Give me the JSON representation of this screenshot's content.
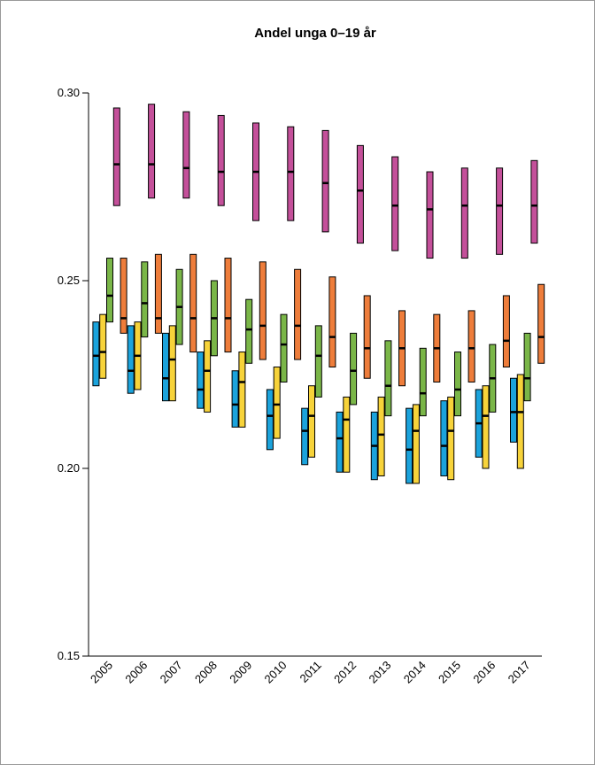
{
  "chart_data": {
    "type": "range",
    "title": "Andel unga 0–19 år",
    "categories": [
      "2005",
      "2006",
      "2007",
      "2008",
      "2009",
      "2010",
      "2011",
      "2012",
      "2013",
      "2014",
      "2015",
      "2016",
      "2017"
    ],
    "ylim": [
      0.15,
      0.3
    ],
    "yticks": [
      0.15,
      {
        "value": 0.2,
        "label": "0.20"
      },
      0.25,
      {
        "value": 0.3,
        "label": "0.30"
      }
    ],
    "series": [
      {
        "color": "#1ba3dc",
        "low": [
          0.222,
          0.22,
          0.218,
          0.216,
          0.211,
          0.205,
          0.201,
          0.199,
          0.197,
          0.196,
          0.198,
          0.203,
          0.207
        ],
        "median": [
          0.23,
          0.226,
          0.224,
          0.221,
          0.217,
          0.214,
          0.21,
          0.208,
          0.206,
          0.205,
          0.206,
          0.212,
          0.215
        ],
        "high": [
          0.239,
          0.238,
          0.236,
          0.231,
          0.226,
          0.221,
          0.216,
          0.215,
          0.215,
          0.216,
          0.218,
          0.221,
          0.224
        ]
      },
      {
        "color": "#f7d33a",
        "low": [
          0.224,
          0.221,
          0.218,
          0.215,
          0.211,
          0.208,
          0.203,
          0.199,
          0.198,
          0.196,
          0.197,
          0.2,
          0.2
        ],
        "median": [
          0.231,
          0.23,
          0.229,
          0.226,
          0.223,
          0.217,
          0.214,
          0.213,
          0.209,
          0.21,
          0.21,
          0.214,
          0.215
        ],
        "high": [
          0.241,
          0.239,
          0.238,
          0.234,
          0.231,
          0.227,
          0.222,
          0.219,
          0.219,
          0.217,
          0.219,
          0.222,
          0.225
        ]
      },
      {
        "color": "#7ab648",
        "low": [
          0.239,
          0.235,
          0.233,
          0.23,
          0.228,
          0.223,
          0.219,
          0.217,
          0.214,
          0.214,
          0.214,
          0.215,
          0.218
        ],
        "median": [
          0.246,
          0.244,
          0.243,
          0.24,
          0.237,
          0.233,
          0.23,
          0.226,
          0.222,
          0.22,
          0.221,
          0.224,
          0.224
        ],
        "high": [
          0.256,
          0.255,
          0.253,
          0.25,
          0.245,
          0.241,
          0.238,
          0.236,
          0.234,
          0.232,
          0.231,
          0.233,
          0.236
        ]
      },
      {
        "color": "#c4509a",
        "low": [
          0.27,
          0.272,
          0.272,
          0.27,
          0.266,
          0.266,
          0.263,
          0.26,
          0.258,
          0.256,
          0.256,
          0.257,
          0.26
        ],
        "median": [
          0.281,
          0.281,
          0.28,
          0.279,
          0.279,
          0.279,
          0.276,
          0.274,
          0.27,
          0.269,
          0.27,
          0.27,
          0.27
        ],
        "high": [
          0.296,
          0.297,
          0.295,
          0.294,
          0.292,
          0.291,
          0.29,
          0.286,
          0.283,
          0.279,
          0.28,
          0.28,
          0.282
        ]
      },
      {
        "color": "#ee7d3b",
        "low": [
          0.236,
          0.236,
          0.231,
          0.231,
          0.229,
          0.229,
          0.227,
          0.224,
          0.222,
          0.223,
          0.223,
          0.227,
          0.228
        ],
        "median": [
          0.24,
          0.24,
          0.24,
          0.24,
          0.238,
          0.238,
          0.235,
          0.232,
          0.232,
          0.232,
          0.232,
          0.234,
          0.235
        ],
        "high": [
          0.256,
          0.257,
          0.257,
          0.256,
          0.255,
          0.253,
          0.251,
          0.246,
          0.242,
          0.241,
          0.242,
          0.246,
          0.249
        ]
      }
    ]
  }
}
